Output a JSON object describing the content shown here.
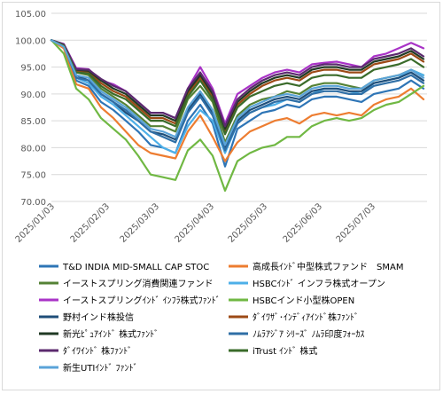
{
  "chart_data": {
    "type": "line",
    "title": "",
    "xlabel": "",
    "ylabel": "",
    "ylim": [
      70,
      105
    ],
    "yticks": [
      70,
      75,
      80,
      85,
      90,
      95,
      100,
      105
    ],
    "ytick_labels": [
      "70.00",
      "75.00",
      "80.00",
      "85.00",
      "90.00",
      "95.00",
      "100.00",
      "105.00"
    ],
    "xlim": [
      "2025-01-03",
      "2025-08-03"
    ],
    "xtick_labels": [
      "2025/01/03",
      "2025/02/03",
      "2025/03/03",
      "2025/04/03",
      "2025/05/03",
      "2025/06/03",
      "2025/07/03"
    ],
    "xtick_dates": [
      "2025-01-03",
      "2025-02-03",
      "2025-03-03",
      "2025-04-03",
      "2025-05-03",
      "2025-06-03",
      "2025-07-03"
    ],
    "grid": true,
    "legend_position": "bottom",
    "x": [
      "2025-01-03",
      "2025-01-10",
      "2025-01-17",
      "2025-01-24",
      "2025-01-31",
      "2025-02-07",
      "2025-02-14",
      "2025-02-21",
      "2025-02-28",
      "2025-03-07",
      "2025-03-14",
      "2025-03-21",
      "2025-03-28",
      "2025-04-04",
      "2025-04-11",
      "2025-04-18",
      "2025-04-25",
      "2025-05-02",
      "2025-05-09",
      "2025-05-16",
      "2025-05-23",
      "2025-05-30",
      "2025-06-06",
      "2025-06-13",
      "2025-06-20",
      "2025-06-27",
      "2025-07-04",
      "2025-07-11",
      "2025-07-18",
      "2025-07-25",
      "2025-08-01"
    ],
    "series": [
      {
        "name": "T&D INDIA MID-SMALL CAP STOC",
        "color": "#2e75b6",
        "values": [
          100,
          98.8,
          92.5,
          91.5,
          88.5,
          87.0,
          85.0,
          83.0,
          80.5,
          80.0,
          79.0,
          85.0,
          88.0,
          84.5,
          76.5,
          83.5,
          85.0,
          86.5,
          87.0,
          88.0,
          87.5,
          89.0,
          89.5,
          89.5,
          89.0,
          88.5,
          90.0,
          90.5,
          91.0,
          92.5,
          91.0
        ]
      },
      {
        "name": "高成長ｲﾝﾄﾞ中型株式ファンド　SMAM",
        "color": "#ed7d31",
        "values": [
          100,
          98.5,
          91.8,
          91.0,
          87.5,
          85.5,
          83.0,
          80.5,
          79.0,
          78.5,
          78.0,
          83.0,
          86.0,
          82.0,
          77.5,
          81.0,
          83.0,
          84.0,
          85.0,
          85.5,
          84.5,
          86.0,
          86.5,
          86.0,
          86.5,
          86.0,
          88.0,
          89.0,
          89.5,
          91.0,
          89.0
        ]
      },
      {
        "name": "イーストスプリング消費関連ファンド",
        "color": "#548235",
        "values": [
          100,
          99.0,
          94.0,
          93.5,
          91.0,
          89.5,
          88.0,
          86.0,
          84.0,
          84.0,
          83.0,
          89.0,
          91.5,
          88.5,
          81.0,
          86.0,
          88.0,
          89.0,
          89.5,
          90.5,
          90.0,
          91.5,
          92.0,
          92.0,
          91.5,
          91.0,
          92.5,
          93.0,
          93.5,
          94.5,
          93.5
        ]
      },
      {
        "name": "HSBCｲﾝﾄﾞ インフラ株式オープン",
        "color": "#4dafe8",
        "values": [
          100,
          99.0,
          93.0,
          92.0,
          89.5,
          88.0,
          86.0,
          84.0,
          82.0,
          80.0,
          79.0,
          84.0,
          87.0,
          85.0,
          79.0,
          84.5,
          86.5,
          87.5,
          88.0,
          89.0,
          88.5,
          90.0,
          91.0,
          91.0,
          90.5,
          90.0,
          92.0,
          92.5,
          93.0,
          94.5,
          93.5
        ]
      },
      {
        "name": "イーストスプリングｲﾝﾄﾞ ｲﾝﾌﾗ株式ﾌｧﾝﾄﾞ",
        "color": "#a933c7",
        "values": [
          100,
          99.3,
          94.8,
          94.6,
          92.5,
          91.8,
          90.5,
          88.5,
          86.5,
          86.5,
          85.5,
          91.0,
          95.0,
          91.0,
          84.5,
          90.0,
          91.5,
          93.0,
          94.0,
          94.5,
          94.0,
          95.5,
          95.8,
          96.0,
          95.5,
          95.0,
          97.0,
          97.5,
          98.5,
          99.5,
          98.5
        ]
      },
      {
        "name": "HSBCインド小型株OPEN",
        "color": "#70b843",
        "values": [
          100,
          97.5,
          91.0,
          89.0,
          85.5,
          83.5,
          81.5,
          78.5,
          75.0,
          74.5,
          74.0,
          79.5,
          81.5,
          78.5,
          72.0,
          77.5,
          79.0,
          80.0,
          80.5,
          82.0,
          82.0,
          84.0,
          85.0,
          85.5,
          85.0,
          85.5,
          87.0,
          88.0,
          88.5,
          90.0,
          91.5
        ]
      },
      {
        "name": "野村インド株投信",
        "color": "#1f4e79",
        "values": [
          100,
          99.0,
          93.5,
          92.5,
          90.0,
          88.5,
          86.5,
          85.0,
          83.0,
          82.5,
          81.5,
          87.0,
          90.0,
          86.5,
          80.0,
          85.0,
          87.0,
          88.0,
          89.0,
          89.5,
          89.0,
          90.5,
          91.0,
          91.0,
          90.5,
          90.5,
          92.0,
          92.5,
          93.0,
          94.0,
          92.5
        ]
      },
      {
        "name": "ﾀﾞｲﾜｻﾞ･ｲﾝﾃﾞｨｱｲﾝﾄﾞ株ﾌｧﾝﾄﾞ",
        "color": "#9c4a16",
        "values": [
          100,
          99.1,
          94.2,
          94.0,
          92.0,
          90.5,
          89.5,
          87.5,
          85.5,
          85.5,
          84.5,
          90.0,
          93.0,
          89.5,
          83.0,
          88.0,
          90.0,
          91.5,
          92.5,
          93.0,
          92.5,
          94.0,
          94.5,
          94.5,
          94.0,
          94.0,
          95.5,
          96.0,
          96.5,
          97.5,
          96.0
        ]
      },
      {
        "name": "新光ﾋﾟｭｱｲﾝﾄﾞ 株式ﾌｧﾝﾄﾞ",
        "color": "#203a24",
        "values": [
          100,
          99.2,
          94.5,
          94.3,
          92.5,
          91.0,
          90.0,
          88.0,
          86.0,
          86.0,
          85.0,
          90.5,
          93.5,
          90.0,
          83.5,
          88.5,
          90.5,
          92.0,
          93.0,
          93.5,
          93.0,
          94.5,
          95.0,
          95.0,
          94.5,
          94.5,
          96.0,
          96.5,
          97.0,
          98.0,
          96.5
        ]
      },
      {
        "name": "ﾉﾑﾗｱｼﾞｱ ｼﾘｰｽﾞ ﾉﾑﾗ印度ﾌｫｰｶｽ",
        "color": "#2f6fa6",
        "values": [
          100,
          99.0,
          93.0,
          92.5,
          90.0,
          88.5,
          87.0,
          85.0,
          83.0,
          82.0,
          81.0,
          86.5,
          89.5,
          86.0,
          79.5,
          84.5,
          86.5,
          87.5,
          88.5,
          89.0,
          88.5,
          90.0,
          90.5,
          90.5,
          90.0,
          90.0,
          91.5,
          92.0,
          92.5,
          93.5,
          92.0
        ]
      },
      {
        "name": "ﾀﾞｲﾜｲﾝﾄﾞ 株ﾌｧﾝﾄﾞ",
        "color": "#5b2a6e",
        "values": [
          100,
          99.2,
          94.6,
          94.5,
          92.8,
          91.5,
          90.5,
          88.5,
          86.5,
          86.5,
          85.5,
          91.0,
          94.0,
          90.5,
          84.0,
          89.0,
          91.0,
          92.5,
          93.5,
          94.0,
          93.5,
          95.0,
          95.5,
          95.5,
          95.0,
          95.0,
          96.5,
          97.0,
          97.5,
          98.5,
          97.0
        ]
      },
      {
        "name": "iTrust ｲﾝﾄﾞ 株式",
        "color": "#3a6b2a",
        "values": [
          100,
          99.0,
          94.0,
          93.8,
          91.5,
          90.0,
          89.0,
          87.0,
          85.0,
          85.0,
          84.0,
          89.5,
          92.5,
          89.0,
          82.5,
          87.5,
          89.5,
          90.5,
          91.5,
          92.0,
          91.5,
          93.0,
          93.5,
          93.5,
          93.0,
          93.0,
          94.5,
          95.0,
          95.5,
          96.5,
          95.0
        ]
      },
      {
        "name": "新生UTIｲﾝﾄﾞ ﾌｧﾝﾄﾞ",
        "color": "#5aa3d8",
        "values": [
          100,
          98.8,
          93.5,
          93.0,
          90.5,
          89.0,
          87.5,
          85.5,
          83.5,
          83.0,
          82.0,
          87.5,
          90.5,
          87.0,
          80.5,
          85.5,
          87.5,
          88.5,
          89.5,
          90.0,
          89.5,
          91.0,
          91.5,
          91.5,
          91.0,
          91.0,
          92.5,
          93.0,
          93.5,
          94.5,
          93.0
        ]
      }
    ]
  }
}
